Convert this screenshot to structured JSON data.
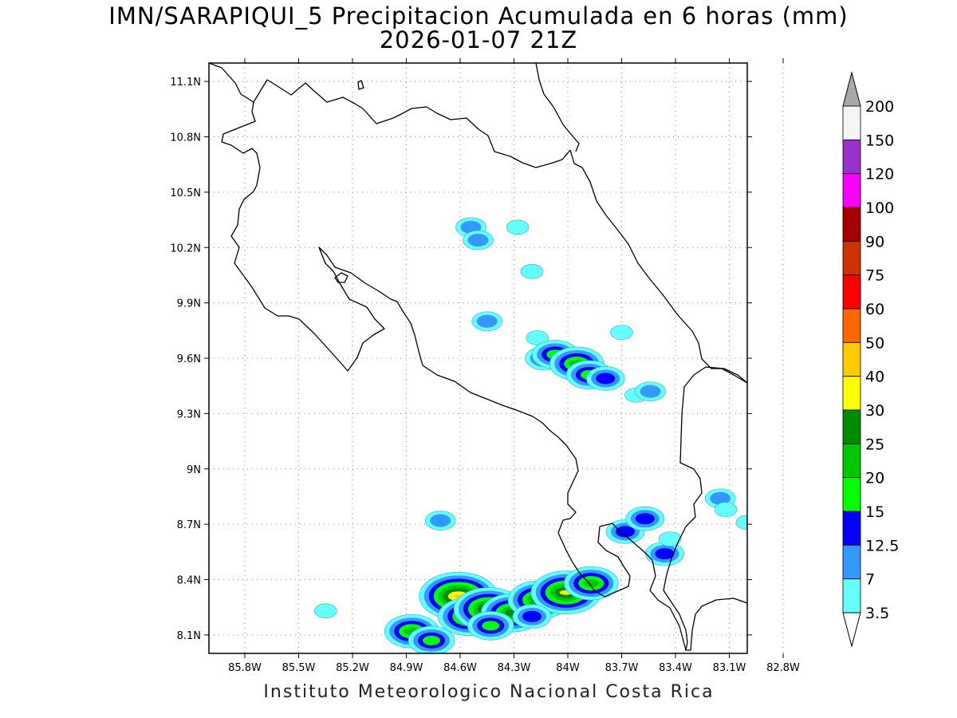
{
  "title": {
    "line1": "IMN/SARAPIQUI_5 Precipitacion Acumulada en 6 horas (mm)",
    "line2": "2026-01-07 21Z"
  },
  "credit": "Instituto Meteorologico Nacional Costa Rica",
  "map": {
    "lon_range": [
      -86.0,
      -83.0
    ],
    "lat_range": [
      8.0,
      11.2
    ],
    "grid": true,
    "lon_ticks": [
      "85.8W",
      "85.5W",
      "85.2W",
      "84.9W",
      "84.6W",
      "84.3W",
      "84W",
      "83.7W",
      "83.4W",
      "83.1W",
      "82.8W"
    ],
    "lat_ticks": [
      "11.1N",
      "10.8N",
      "10.5N",
      "10.2N",
      "9.9N",
      "9.6N",
      "9.3N",
      "9N",
      "8.7N",
      "8.4N",
      "8.1N"
    ]
  },
  "colorbar": {
    "labels": [
      "200",
      "150",
      "120",
      "100",
      "90",
      "75",
      "60",
      "50",
      "40",
      "30",
      "25",
      "20",
      "15",
      "12.5",
      "7",
      "3.5"
    ],
    "colors": [
      "#a9a9a9",
      "#f5f5f5",
      "#9932cc",
      "#ff00ff",
      "#a50000",
      "#cc3300",
      "#ff0000",
      "#ff6600",
      "#ffcc00",
      "#ffff00",
      "#008c00",
      "#00c800",
      "#00ff00",
      "#0000ff",
      "#3399ff",
      "#66ffff",
      "#ffffff"
    ]
  },
  "precip_cells": [
    {
      "lon": -84.54,
      "lat": 10.31,
      "level": 2
    },
    {
      "lon": -84.5,
      "lat": 10.24,
      "level": 2
    },
    {
      "lon": -84.28,
      "lat": 10.31,
      "level": 1
    },
    {
      "lon": -84.2,
      "lat": 10.07,
      "level": 1
    },
    {
      "lon": -84.45,
      "lat": 9.8,
      "level": 2
    },
    {
      "lon": -84.17,
      "lat": 9.71,
      "level": 1
    },
    {
      "lon": -84.13,
      "lat": 9.6,
      "level": 3
    },
    {
      "lon": -84.07,
      "lat": 9.62,
      "level": 4
    },
    {
      "lon": -83.95,
      "lat": 9.57,
      "level": 5
    },
    {
      "lon": -83.88,
      "lat": 9.51,
      "level": 4
    },
    {
      "lon": -83.79,
      "lat": 9.49,
      "level": 3
    },
    {
      "lon": -83.7,
      "lat": 9.74,
      "level": 1
    },
    {
      "lon": -83.62,
      "lat": 9.4,
      "level": 1
    },
    {
      "lon": -83.54,
      "lat": 9.42,
      "level": 2
    },
    {
      "lon": -84.71,
      "lat": 8.72,
      "level": 2
    },
    {
      "lon": -83.68,
      "lat": 8.66,
      "level": 3
    },
    {
      "lon": -83.57,
      "lat": 8.73,
      "level": 3
    },
    {
      "lon": -83.46,
      "lat": 8.54,
      "level": 3
    },
    {
      "lon": -83.15,
      "lat": 8.84,
      "level": 2
    },
    {
      "lon": -83.12,
      "lat": 8.78,
      "level": 1
    },
    {
      "lon": -83.0,
      "lat": 8.71,
      "level": 1
    },
    {
      "lon": -83.43,
      "lat": 8.62,
      "level": 1
    },
    {
      "lon": -85.35,
      "lat": 8.23,
      "level": 1
    },
    {
      "lon": -84.61,
      "lat": 8.31,
      "level": 8
    },
    {
      "lon": -84.55,
      "lat": 8.2,
      "level": 6
    },
    {
      "lon": -84.44,
      "lat": 8.24,
      "level": 7
    },
    {
      "lon": -84.31,
      "lat": 8.22,
      "level": 6
    },
    {
      "lon": -84.16,
      "lat": 8.29,
      "level": 6
    },
    {
      "lon": -84.01,
      "lat": 8.33,
      "level": 7
    },
    {
      "lon": -83.87,
      "lat": 8.38,
      "level": 5
    },
    {
      "lon": -84.87,
      "lat": 8.12,
      "level": 5
    },
    {
      "lon": -84.76,
      "lat": 8.07,
      "level": 4
    },
    {
      "lon": -84.43,
      "lat": 8.15,
      "level": 4
    },
    {
      "lon": -84.2,
      "lat": 8.2,
      "level": 3
    }
  ]
}
